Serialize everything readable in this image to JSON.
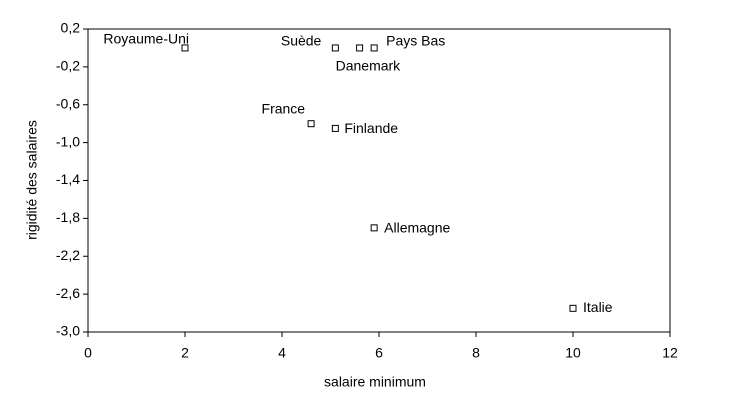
{
  "chart_data": {
    "type": "scatter",
    "x_label": "salaire minimum",
    "y_label": "rigidité des salaires",
    "point_labels": [
      "Royaume-Uni",
      "Suède",
      "Danemark",
      "Pays Bas",
      "France",
      "Finlande",
      "Allemagne",
      "Italie"
    ],
    "x": [
      2.0,
      5.1,
      5.6,
      5.9,
      4.6,
      5.1,
      5.9,
      10.0
    ],
    "values": [
      0.0,
      0.0,
      0.0,
      0.0,
      -0.8,
      -0.85,
      -1.9,
      -2.75
    ],
    "color": "#000000",
    "xlim": [
      0,
      12
    ],
    "xticks": [
      0,
      2,
      4,
      6,
      8,
      10,
      12
    ],
    "ylim": [
      -3.0,
      0.2
    ],
    "yticks": [
      {
        "value": 0.2,
        "label": "0,2"
      },
      {
        "value": -0.2,
        "label": "-0,2"
      },
      {
        "value": -0.6,
        "label": "-0,6"
      },
      {
        "value": -1.0,
        "label": "-1,0"
      },
      {
        "value": -1.4,
        "label": "-1,4"
      },
      {
        "value": -1.8,
        "label": "-1,8"
      },
      {
        "value": -2.2,
        "label": "-2,2"
      },
      {
        "value": -2.6,
        "label": "-2,6"
      },
      {
        "value": -3.0,
        "label": "-3,0"
      }
    ],
    "grid": false
  }
}
